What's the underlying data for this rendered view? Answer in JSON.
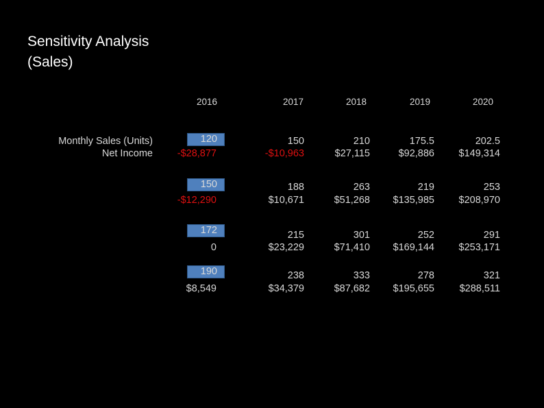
{
  "title": {
    "line1": "Sensitivity Analysis",
    "line2": "(Sales)"
  },
  "years": [
    "2016",
    "2017",
    "2018",
    "2019",
    "2020"
  ],
  "row_labels": {
    "sales": "Monthly Sales (Units)",
    "income": "Net Income"
  },
  "scenarios": [
    {
      "input": "120",
      "sales": [
        "150",
        "210",
        "175.5",
        "202.5"
      ],
      "income": [
        "-$28,877",
        "-$10,963",
        "$27,115",
        "$92,886",
        "$149,314"
      ],
      "income_negative": [
        true,
        true,
        false,
        false,
        false
      ]
    },
    {
      "input": "150",
      "sales": [
        "188",
        "263",
        "219",
        "253"
      ],
      "income": [
        "-$12,290",
        "$10,671",
        "$51,268",
        "$135,985",
        "$208,970"
      ],
      "income_negative": [
        true,
        false,
        false,
        false,
        false
      ]
    },
    {
      "input": "172",
      "sales": [
        "215",
        "301",
        "252",
        "291"
      ],
      "income": [
        "0",
        "$23,229",
        "$71,410",
        "$169,144",
        "$253,171"
      ],
      "income_negative": [
        false,
        false,
        false,
        false,
        false
      ]
    },
    {
      "input": "190",
      "sales": [
        "238",
        "333",
        "278",
        "321"
      ],
      "income": [
        "$8,549",
        "$34,379",
        "$87,682",
        "$195,655",
        "$288,511"
      ],
      "income_negative": [
        false,
        false,
        false,
        false,
        false
      ]
    }
  ],
  "colors": {
    "background": "#000000",
    "text": "#d9d9d9",
    "negative": "#e01010",
    "input_fill": "#4f80bd"
  }
}
